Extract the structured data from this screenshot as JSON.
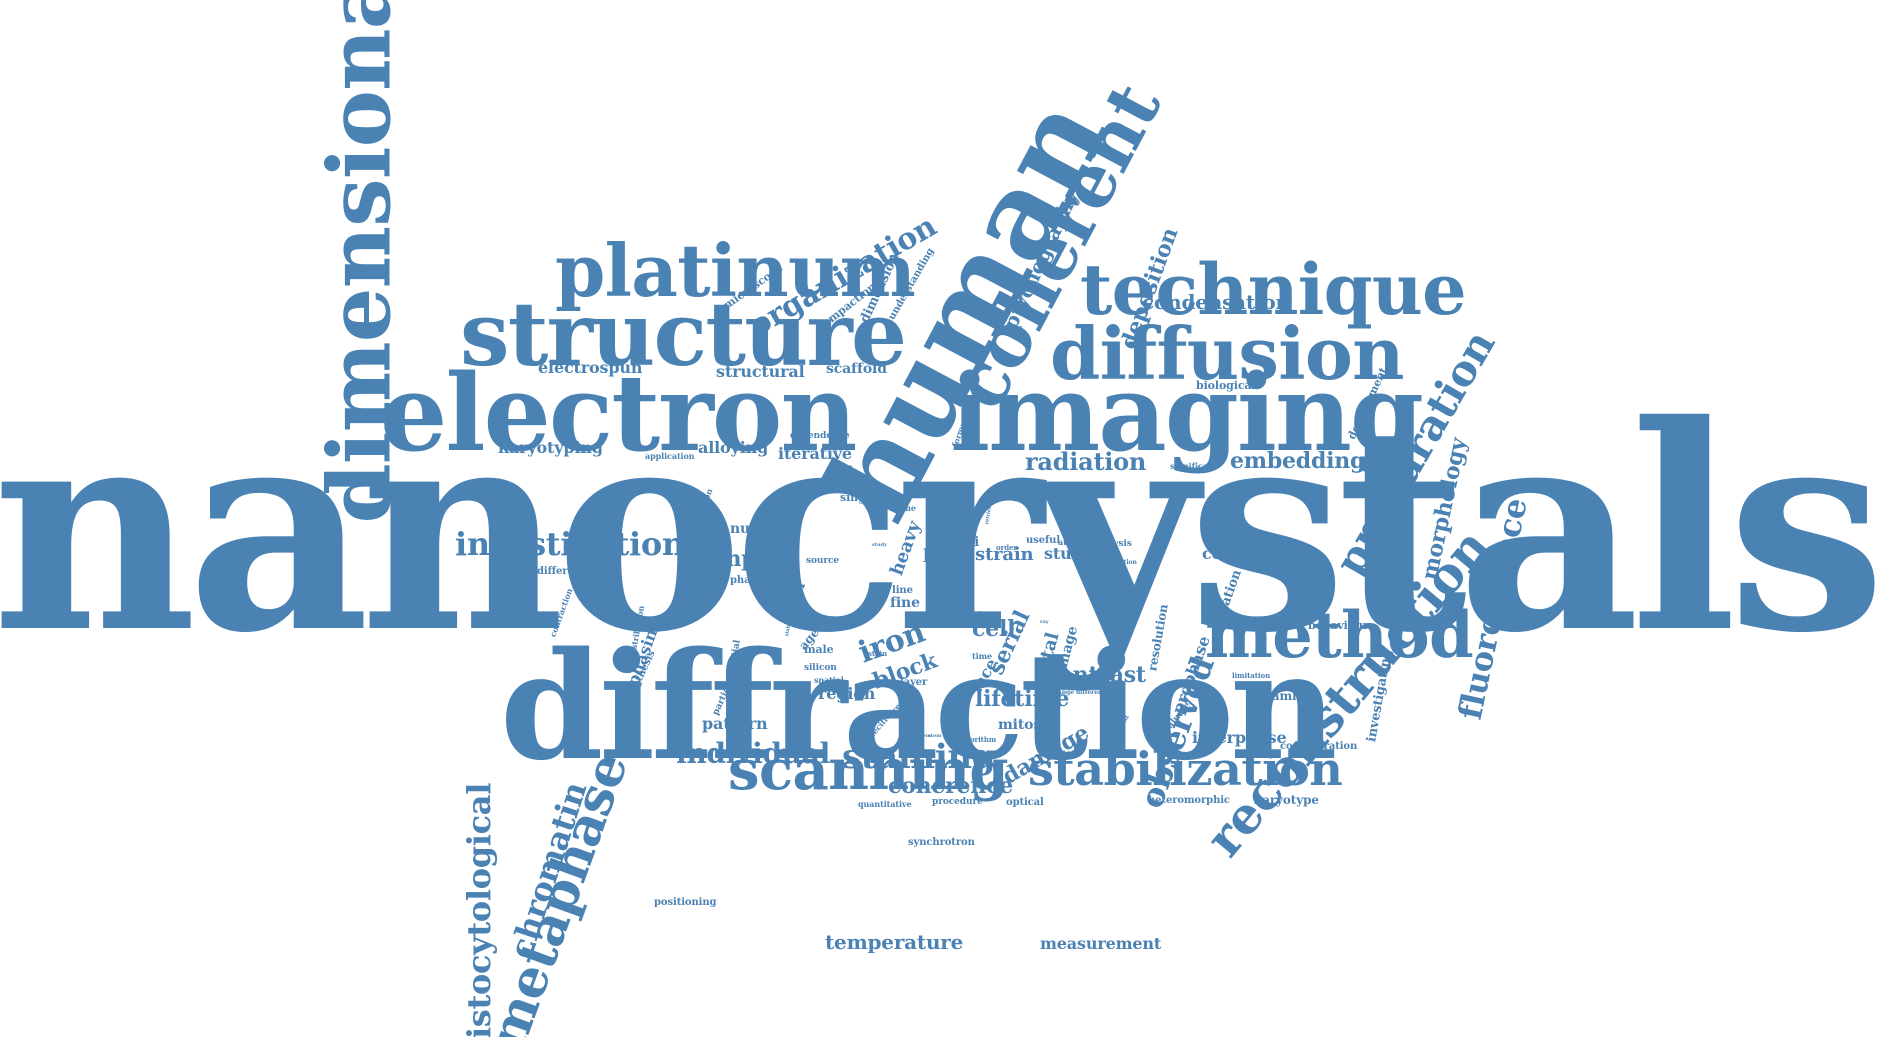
{
  "word_cloud": {
    "color": "#4a82b4",
    "background": "#ffffff",
    "words": [
      "nanocrystals",
      "diffraction",
      "dimensional",
      "electron",
      "structure",
      "imaging",
      "human",
      "coherent",
      "platinum",
      "technique",
      "diffusion",
      "method",
      "scanning",
      "stabilization",
      "reconstruction",
      "preparation",
      "metaphase",
      "chromatin",
      "histocytological",
      "investigation",
      "organization",
      "observed",
      "fluorescence",
      "staining",
      "individual",
      "deposition",
      "ptychography",
      "condensation",
      "radiation",
      "embedding",
      "morphology",
      "coherence",
      "temperature",
      "measurement",
      "lifetime",
      "contrast",
      "iron",
      "block",
      "sample",
      "karyotyping",
      "electrospun",
      "structural",
      "scaffold",
      "alloying",
      "iterative",
      "pattern",
      "region",
      "damage",
      "cell",
      "serial",
      "metal",
      "interphase",
      "coloring",
      "studies",
      "strain",
      "blue",
      "heavy",
      "phasing",
      "nuclear",
      "dimension",
      "microscope",
      "compaction",
      "understanding",
      "biological",
      "development",
      "significant",
      "resolution",
      "variation",
      "investigating",
      "behaviour",
      "beamline",
      "concentration",
      "karyotype",
      "heteromorphic",
      "optical",
      "synchrotron",
      "positioning",
      "procedure",
      "quantitative",
      "mitosis",
      "prophase",
      "evaluate",
      "limitation",
      "dapi",
      "useful",
      "analysis",
      "atomic",
      "fine",
      "line",
      "novel",
      "agent",
      "male",
      "silicon",
      "spatial",
      "layer",
      "stain",
      "image",
      "face",
      "phase",
      "source",
      "difference",
      "contraction",
      "distribution",
      "potential",
      "particle",
      "synthesis",
      "specific",
      "result",
      "application",
      "dependence",
      "formation",
      "single",
      "volume",
      "destruction",
      "size",
      "order",
      "time",
      "grown",
      "change",
      "different",
      "experiment",
      "algorithm",
      "system",
      "stem",
      "study",
      "diamond",
      "stability",
      "function",
      "level",
      "place",
      "retrieval",
      "signal",
      "position",
      "higher",
      "ray",
      "dose"
    ]
  }
}
